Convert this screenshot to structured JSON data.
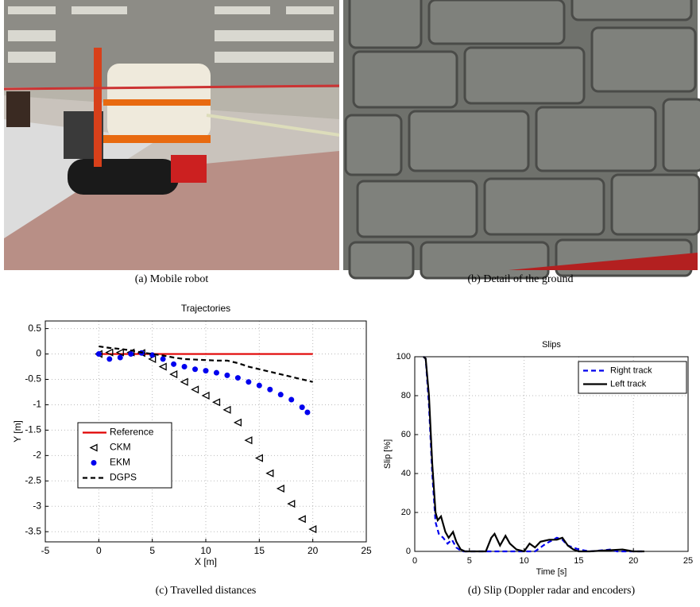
{
  "captions": [
    "(a) Mobile robot",
    "(b) Detail of the ground",
    "(c) Travelled distances",
    "(d) Slip (Doppler radar and encoders)"
  ],
  "chart_data": [
    {
      "type": "line",
      "title": "Trajectories",
      "x_label": "X [m]",
      "y_label": "Y [m]",
      "xlim": [
        -5,
        25
      ],
      "xticks": [
        -5,
        0,
        5,
        10,
        15,
        20,
        25
      ],
      "ylim": [
        -3.7,
        0.65
      ],
      "yticks": [
        0.5,
        0,
        -0.5,
        -1,
        -1.5,
        -2,
        -2.5,
        -3,
        -3.5
      ],
      "grid": true,
      "legend": "lower left",
      "series": [
        {
          "name": "Reference",
          "color": "#e00000",
          "style": "solid",
          "x": [
            0,
            20
          ],
          "y": [
            0,
            0
          ]
        },
        {
          "name": "CKM",
          "color": "#000000",
          "marker": "triangle",
          "x": [
            0,
            1,
            2,
            3,
            4,
            5,
            6,
            7,
            8,
            9,
            10,
            11,
            12,
            13,
            14,
            15,
            16,
            17,
            18,
            19,
            20
          ],
          "y": [
            0,
            0.03,
            0.03,
            0.03,
            0.02,
            -0.1,
            -0.25,
            -0.4,
            -0.55,
            -0.7,
            -0.82,
            -0.95,
            -1.1,
            -1.35,
            -1.7,
            -2.05,
            -2.35,
            -2.65,
            -2.95,
            -3.25,
            -3.45
          ]
        },
        {
          "name": "EKM",
          "color": "#0000ee",
          "marker": "dot",
          "x": [
            0,
            1,
            2,
            3,
            4,
            5,
            6,
            7,
            8,
            9,
            10,
            11,
            12,
            13,
            14,
            15,
            16,
            17,
            18,
            19,
            19.5
          ],
          "y": [
            0,
            -0.1,
            -0.07,
            0,
            0.02,
            -0.02,
            -0.1,
            -0.2,
            -0.25,
            -0.3,
            -0.33,
            -0.37,
            -0.42,
            -0.47,
            -0.55,
            -0.62,
            -0.7,
            -0.8,
            -0.9,
            -1.05,
            -1.15
          ]
        },
        {
          "name": "DGPS",
          "color": "#000000",
          "style": "dashed",
          "x": [
            0,
            1,
            2,
            3,
            4,
            5,
            6,
            7,
            8,
            9,
            10,
            11,
            12,
            13,
            14,
            15,
            16,
            17,
            18,
            19,
            20
          ],
          "y": [
            0.15,
            0.12,
            0.1,
            0.07,
            0.03,
            0,
            -0.03,
            -0.07,
            -0.1,
            -0.11,
            -0.12,
            -0.13,
            -0.13,
            -0.18,
            -0.25,
            -0.3,
            -0.35,
            -0.4,
            -0.45,
            -0.5,
            -0.55
          ]
        }
      ]
    },
    {
      "type": "line",
      "title": "Slips",
      "x_label": "Time [s]",
      "y_label": "Slip [%]",
      "xlim": [
        0,
        25
      ],
      "xticks": [
        0,
        5,
        10,
        15,
        20,
        25
      ],
      "ylim": [
        0,
        100
      ],
      "yticks": [
        0,
        20,
        40,
        60,
        80,
        100
      ],
      "grid": true,
      "legend": "upper right",
      "series": [
        {
          "name": "Right track",
          "color": "#0000ee",
          "style": "dashed",
          "x": [
            0.8,
            1,
            1.3,
            1.6,
            1.9,
            2.2,
            2.6,
            3,
            3.4,
            3.8,
            4.3,
            11,
            12,
            13,
            13.5,
            14,
            15,
            16,
            18,
            18.5,
            21
          ],
          "y": [
            100,
            99,
            75,
            40,
            15,
            9,
            7,
            4,
            6,
            2,
            0,
            0,
            4,
            7,
            6,
            3,
            1,
            0,
            1,
            0,
            0
          ]
        },
        {
          "name": "Left track",
          "color": "#000000",
          "style": "solid",
          "x": [
            0.8,
            1,
            1.3,
            1.6,
            1.9,
            2.1,
            2.4,
            2.8,
            3.1,
            3.5,
            3.8,
            4.2,
            4.6,
            6.5,
            7,
            7.3,
            7.8,
            8.3,
            8.7,
            9.3,
            10,
            10.5,
            11,
            11.5,
            12.3,
            13,
            13.5,
            14,
            14.5,
            15,
            16,
            19,
            20,
            21
          ],
          "y": [
            100,
            99,
            80,
            45,
            20,
            16,
            18,
            10,
            7,
            10,
            5,
            1,
            0,
            0,
            7,
            9,
            3,
            8,
            4,
            1,
            0,
            4,
            2,
            5,
            6,
            6,
            7,
            3,
            1,
            0,
            0,
            1,
            0,
            0
          ]
        }
      ]
    }
  ]
}
